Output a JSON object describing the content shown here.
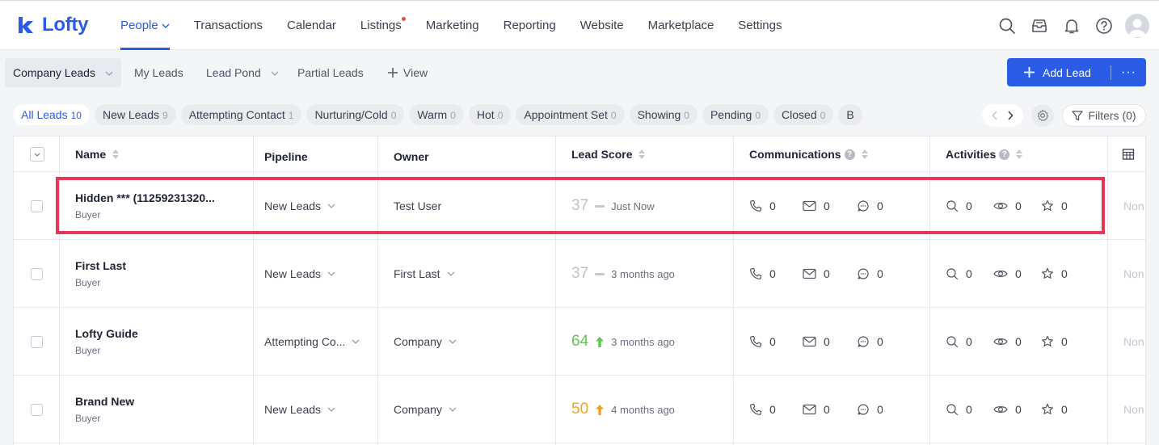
{
  "app": {
    "logo": "Lofty"
  },
  "nav": {
    "items": [
      {
        "label": "People",
        "active": true,
        "dropdown": true
      },
      {
        "label": "Transactions"
      },
      {
        "label": "Calendar"
      },
      {
        "label": "Listings",
        "badge_dot": true
      },
      {
        "label": "Marketing"
      },
      {
        "label": "Reporting"
      },
      {
        "label": "Website"
      },
      {
        "label": "Marketplace"
      },
      {
        "label": "Settings"
      }
    ],
    "icons": [
      "search-icon",
      "inbox-icon",
      "bell-icon",
      "help-icon",
      "avatar"
    ]
  },
  "subnav": {
    "tabs": [
      {
        "label": "Company Leads",
        "active": true,
        "dropdown": true
      },
      {
        "label": "My Leads"
      },
      {
        "label": "Lead Pond",
        "dropdown": true
      },
      {
        "label": "Partial Leads"
      },
      {
        "label": "View",
        "icon": "plus-icon"
      }
    ],
    "add_lead": "Add Lead",
    "more": "···"
  },
  "filters": {
    "chips": [
      {
        "label": "All Leads",
        "count": "10",
        "active": true
      },
      {
        "label": "New Leads",
        "count": "9"
      },
      {
        "label": "Attempting Contact",
        "count": "1"
      },
      {
        "label": "Nurturing/Cold",
        "count": "0"
      },
      {
        "label": "Warm",
        "count": "0"
      },
      {
        "label": "Hot",
        "count": "0"
      },
      {
        "label": "Appointment Set",
        "count": "0"
      },
      {
        "label": "Showing",
        "count": "0"
      },
      {
        "label": "Pending",
        "count": "0"
      },
      {
        "label": "Closed",
        "count": "0"
      },
      {
        "label": "B",
        "count": ""
      }
    ],
    "filters_label": "Filters (0)"
  },
  "table": {
    "headers": {
      "name": "Name",
      "pipeline": "Pipeline",
      "owner": "Owner",
      "lead_score": "Lead Score",
      "communications": "Communications",
      "activities": "Activities"
    },
    "rows": [
      {
        "name": "Hidden *** (11259231320...",
        "type": "Buyer",
        "pipeline": "New Leads",
        "owner": "Test User",
        "owner_dropdown": false,
        "score": "37",
        "score_color": "#bfc3cb",
        "trend": "flat",
        "time": "Just Now",
        "calls": "0",
        "emails": "0",
        "texts": "0",
        "searches": "0",
        "views": "0",
        "favorites": "0",
        "extra": "Non"
      },
      {
        "name": "First Last",
        "type": "Buyer",
        "pipeline": "New Leads",
        "owner": "First Last",
        "owner_dropdown": true,
        "score": "37",
        "score_color": "#bfc3cb",
        "trend": "flat",
        "time": "3 months ago",
        "calls": "0",
        "emails": "0",
        "texts": "0",
        "searches": "0",
        "views": "0",
        "favorites": "0",
        "extra": "Non"
      },
      {
        "name": "Lofty Guide",
        "type": "Buyer",
        "pipeline": "Attempting Co...",
        "owner": "Company",
        "owner_dropdown": true,
        "score": "64",
        "score_color": "#62c453",
        "trend": "up",
        "time": "3 months ago",
        "calls": "0",
        "emails": "0",
        "texts": "0",
        "searches": "0",
        "views": "0",
        "favorites": "0",
        "extra": "Non"
      },
      {
        "name": "Brand New",
        "type": "Buyer",
        "pipeline": "New Leads",
        "owner": "Company",
        "owner_dropdown": true,
        "score": "50",
        "score_color": "#f0a322",
        "trend": "up",
        "time": "4 months ago",
        "calls": "0",
        "emails": "0",
        "texts": "0",
        "searches": "0",
        "views": "0",
        "favorites": "0",
        "extra": "Non"
      }
    ]
  },
  "colors": {
    "accent": "#2b5ce6",
    "highlight": "#e8355a",
    "score_green": "#62c453",
    "score_orange": "#f0a322"
  }
}
